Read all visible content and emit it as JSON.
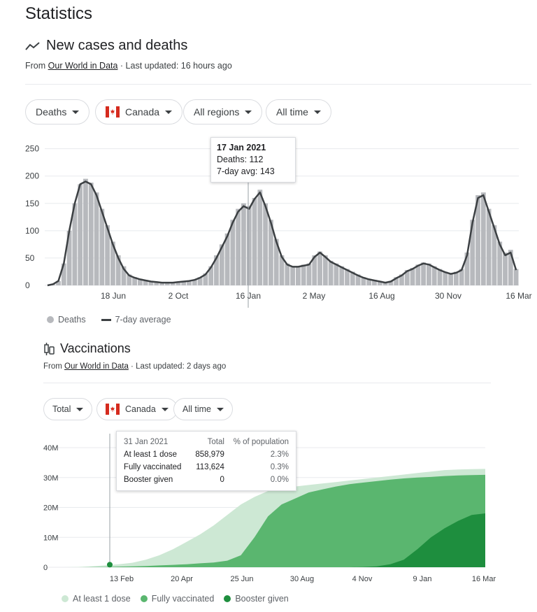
{
  "page": {
    "title": "Statistics"
  },
  "cases_section": {
    "title": "New cases and deaths",
    "source_prefix": "From ",
    "source_link": "Our World in Data",
    "updated": " · Last updated: 16 hours ago",
    "filters": [
      "Deaths",
      "Canada",
      "All regions",
      "All time"
    ],
    "tooltip": {
      "date": "17 Jan 2021",
      "line1": "Deaths: 112",
      "line2": "7-day avg: 143"
    },
    "legend": [
      "Deaths",
      "7-day average"
    ]
  },
  "vacc_section": {
    "title": "Vaccinations",
    "source_prefix": "From ",
    "source_link": "Our World in Data",
    "updated": " · Last updated: 2 days ago",
    "filters": [
      "Total",
      "Canada",
      "All time"
    ],
    "tooltip": {
      "date": "31 Jan 2021",
      "col_total": "Total",
      "col_pct": "% of population",
      "rows": [
        {
          "label": "At least 1 dose",
          "total": "858,979",
          "pct": "2.3%"
        },
        {
          "label": "Fully vaccinated",
          "total": "113,624",
          "pct": "0.3%"
        },
        {
          "label": "Booster given",
          "total": "0",
          "pct": "0.0%"
        }
      ]
    },
    "legend": [
      "At least 1 dose",
      "Fully vaccinated",
      "Booster given"
    ]
  },
  "colors": {
    "deaths_bar": "#b7b9bd",
    "avg_line": "#3c4043",
    "dose1": "#cde8d4",
    "full": "#5ab66f",
    "booster": "#1e8e3e"
  },
  "chart_data": [
    {
      "type": "bar",
      "series": [
        {
          "name": "Deaths",
          "kind": "bar",
          "values": [
            0,
            2,
            8,
            40,
            100,
            150,
            185,
            195,
            188,
            170,
            140,
            110,
            80,
            55,
            35,
            20,
            15,
            12,
            10,
            8,
            6,
            6,
            5,
            5,
            6,
            7,
            8,
            10,
            15,
            22,
            35,
            55,
            75,
            95,
            120,
            140,
            150,
            145,
            160,
            175,
            150,
            120,
            85,
            55,
            40,
            35,
            35,
            38,
            40,
            55,
            62,
            55,
            45,
            40,
            35,
            30,
            25,
            20,
            15,
            12,
            10,
            8,
            6,
            8,
            15,
            20,
            28,
            32,
            38,
            42,
            40,
            35,
            30,
            25,
            22,
            25,
            30,
            60,
            120,
            165,
            170,
            140,
            110,
            80,
            60,
            65,
            30
          ]
        },
        {
          "name": "7-day average",
          "kind": "line",
          "values": [
            0,
            2,
            8,
            40,
            100,
            150,
            185,
            190,
            185,
            165,
            135,
            105,
            75,
            50,
            30,
            18,
            14,
            11,
            9,
            7,
            6,
            5,
            5,
            5,
            6,
            7,
            8,
            10,
            14,
            20,
            33,
            50,
            70,
            90,
            115,
            135,
            145,
            140,
            158,
            170,
            145,
            115,
            80,
            52,
            38,
            34,
            34,
            36,
            38,
            52,
            60,
            52,
            43,
            38,
            33,
            28,
            23,
            18,
            14,
            11,
            9,
            7,
            5,
            7,
            13,
            18,
            26,
            30,
            36,
            40,
            38,
            33,
            28,
            24,
            21,
            23,
            28,
            55,
            115,
            160,
            165,
            135,
            105,
            75,
            55,
            60,
            28
          ]
        }
      ],
      "x_ticks": [
        "18 Jun",
        "2 Oct",
        "16 Jan",
        "2 May",
        "16 Aug",
        "30 Nov",
        "16 Mar"
      ],
      "y_ticks": [
        0,
        50,
        100,
        150,
        200,
        250
      ],
      "ylim": [
        0,
        270
      ]
    },
    {
      "type": "area",
      "series": [
        {
          "name": "At least 1 dose",
          "values": [
            0,
            0.1,
            0.3,
            0.6,
            1,
            1.5,
            2.5,
            4,
            6,
            8.5,
            11,
            14,
            17.5,
            21,
            23.5,
            25.5,
            26.5,
            27,
            27.5,
            28,
            28.5,
            29,
            29.5,
            30,
            30.5,
            31,
            31.5,
            32,
            32.5,
            32.7,
            32.8,
            32.9
          ]
        },
        {
          "name": "Fully vaccinated",
          "values": [
            0,
            0,
            0.05,
            0.1,
            0.2,
            0.3,
            0.4,
            0.6,
            0.8,
            1,
            1.3,
            1.6,
            2.2,
            4,
            10,
            17,
            21,
            23,
            25,
            26,
            27,
            27.8,
            28.3,
            28.8,
            29.3,
            29.7,
            30,
            30.2,
            30.5,
            30.7,
            30.8,
            30.9
          ]
        },
        {
          "name": "Booster given",
          "values": [
            0,
            0,
            0,
            0,
            0,
            0,
            0,
            0,
            0,
            0,
            0,
            0,
            0,
            0,
            0,
            0,
            0,
            0,
            0,
            0,
            0,
            0,
            0.1,
            0.3,
            1,
            2.5,
            6,
            10,
            13,
            15.5,
            17.5,
            18
          ]
        }
      ],
      "x_ticks": [
        "13 Feb",
        "20 Apr",
        "25 Jun",
        "30 Aug",
        "4 Nov",
        "9 Jan",
        "16 Mar"
      ],
      "y_ticks": [
        "0",
        "10M",
        "20M",
        "30M",
        "40M"
      ],
      "ylim": [
        0,
        40
      ]
    }
  ]
}
